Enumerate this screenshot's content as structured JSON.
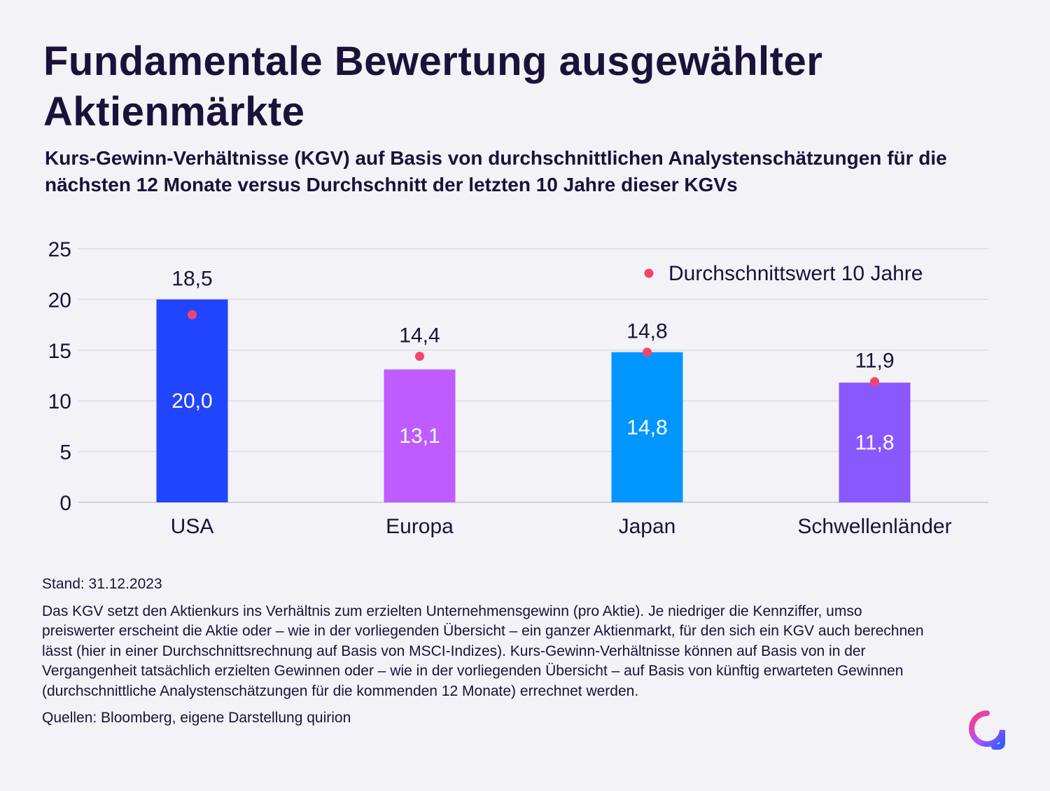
{
  "title": "Fundamentale Bewertung ausgewählter Aktienmärkte",
  "subtitle": "Kurs-Gewinn-Verhältnisse (KGV) auf Basis von durchschnittlichen Analystenschätzungen für die nächsten 12 Monate versus Durchschnitt der letzten 10 Jahre dieser KGVs",
  "chart_data": {
    "type": "bar",
    "categories": [
      "USA",
      "Europa",
      "Japan",
      "Schwellenländer"
    ],
    "series": [
      {
        "name": "",
        "values": [
          20.0,
          13.1,
          14.8,
          11.8
        ],
        "labels": [
          "20,0",
          "13,1",
          "14,8",
          "11,8"
        ],
        "colors": [
          "#2145ff",
          "#bf5cff",
          "#0096ff",
          "#8a58ff"
        ]
      },
      {
        "name": "Durchschnittswert 10 Jahre",
        "type": "scatter",
        "values": [
          18.5,
          14.4,
          14.8,
          11.9
        ],
        "labels": [
          "18,5",
          "14,4",
          "14,8",
          "11,9"
        ],
        "color": "#f5446c"
      }
    ],
    "yticks": [
      0,
      5,
      10,
      15,
      20,
      25
    ],
    "ylim": [
      0,
      25
    ],
    "grid": true,
    "legend": "top-right",
    "xlabel": "",
    "ylabel": ""
  },
  "footer": {
    "stand": "Stand: 31.12.2023",
    "description": "Das KGV setzt den Aktienkurs ins Verhältnis zum erzielten Unternehmensgewinn (pro Aktie). Je niedriger die Kennziffer, umso preiswerter erscheint die Aktie oder – wie in der vorliegenden Übersicht – ein ganzer Aktienmarkt, für den sich ein KGV auch berechnen lässt (hier in einer Durchschnittsrechnung auf Basis von MSCI-Indizes). Kurs-Gewinn-Verhältnisse können auf Basis von in der Vergangenheit tatsächlich erzielten Gewinnen oder – wie in der vorliegenden Übersicht – auf Basis von künftig erwarteten Gewinnen (durchschnittliche Analystenschätzungen für die kommenden 12 Monate) errechnet werden.",
    "sources": "Quellen: Bloomberg, eigene Darstellung quirion"
  },
  "logo_icon": "quirion-logo-icon"
}
